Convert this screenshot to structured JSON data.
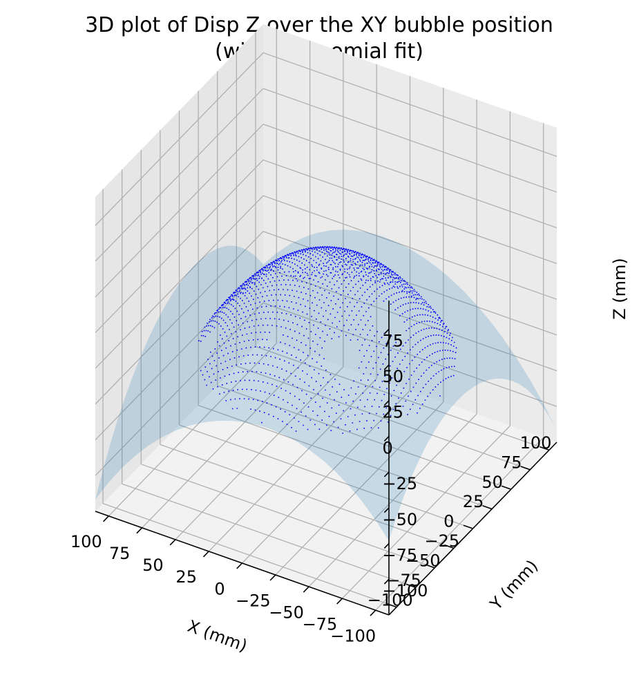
{
  "chart_data": {
    "type": "scatter",
    "projection": "3d",
    "title_line1": "3D plot of Disp Z over the XY bubble position",
    "title_line2": "(with polynomial fit)",
    "xlabel": "X (mm)",
    "ylabel": "Y (mm)",
    "zlabel": "Z (mm)",
    "xlim": [
      -110,
      110
    ],
    "ylim": [
      -110,
      110
    ],
    "zlim": [
      -125,
      95
    ],
    "x_ticks": [
      -100,
      -75,
      -50,
      -25,
      0,
      25,
      50,
      75,
      100
    ],
    "y_ticks": [
      -100,
      -75,
      -50,
      -25,
      0,
      25,
      50,
      75,
      100
    ],
    "z_ticks": [
      -100,
      -75,
      -50,
      -25,
      0,
      25,
      50,
      75
    ],
    "x_tick_labels": [
      "−100",
      "−75",
      "−50",
      "−25",
      "0",
      "25",
      "50",
      "75",
      "100"
    ],
    "y_tick_labels": [
      "−100",
      "−75",
      "−50",
      "−25",
      "0",
      "25",
      "50",
      "75",
      "100"
    ],
    "z_tick_labels": [
      "−100",
      "−75",
      "−50",
      "−25",
      "0",
      "25",
      "50",
      "75"
    ],
    "grid": true,
    "series": [
      {
        "kind": "scatter",
        "color": "#0000ff",
        "description_shape": "dome-shaped bubble cap",
        "x_range": [
          -85,
          85
        ],
        "y_range": [
          -85,
          85
        ],
        "z_at_center": 25,
        "z_at_rim": -40
      },
      {
        "kind": "surface",
        "color": "#1f77b4",
        "opacity": 0.2,
        "x_range": [
          -110,
          110
        ],
        "y_range": [
          -110,
          110
        ],
        "z_at_center": 25,
        "z_at_corner_min": -125
      }
    ]
  }
}
